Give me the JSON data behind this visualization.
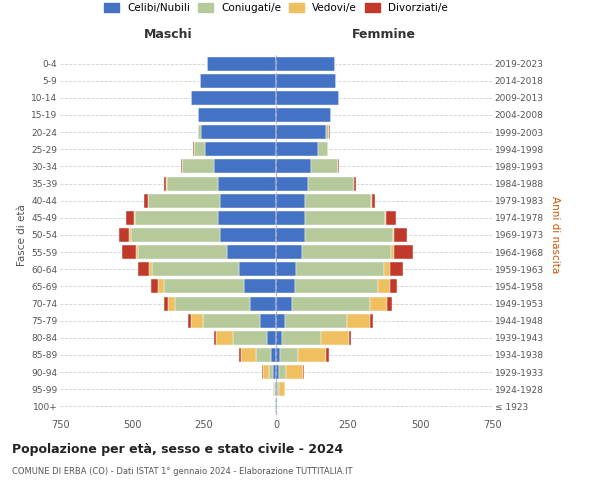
{
  "age_groups": [
    "100+",
    "95-99",
    "90-94",
    "85-89",
    "80-84",
    "75-79",
    "70-74",
    "65-69",
    "60-64",
    "55-59",
    "50-54",
    "45-49",
    "40-44",
    "35-39",
    "30-34",
    "25-29",
    "20-24",
    "15-19",
    "10-14",
    "5-9",
    "0-4"
  ],
  "birth_years": [
    "≤ 1923",
    "1924-1928",
    "1929-1933",
    "1934-1938",
    "1939-1943",
    "1944-1948",
    "1949-1953",
    "1954-1958",
    "1959-1963",
    "1964-1968",
    "1969-1973",
    "1974-1978",
    "1979-1983",
    "1984-1988",
    "1989-1993",
    "1994-1998",
    "1999-2003",
    "2004-2008",
    "2009-2013",
    "2014-2018",
    "2019-2023"
  ],
  "colors": {
    "celibi": "#4472C4",
    "coniugati": "#b5c99a",
    "vedovi": "#f0c060",
    "divorziati": "#c0392b"
  },
  "maschi": {
    "celibi": [
      2,
      5,
      10,
      18,
      30,
      55,
      90,
      110,
      130,
      170,
      195,
      200,
      195,
      200,
      215,
      245,
      260,
      270,
      295,
      265,
      240
    ],
    "coniugati": [
      0,
      3,
      15,
      50,
      120,
      200,
      260,
      280,
      300,
      310,
      310,
      290,
      250,
      180,
      110,
      40,
      10,
      2,
      0,
      0,
      0
    ],
    "vedovi": [
      0,
      2,
      20,
      55,
      60,
      40,
      25,
      18,
      10,
      5,
      4,
      2,
      1,
      1,
      0,
      0,
      0,
      0,
      0,
      0,
      0
    ],
    "divorziati": [
      0,
      0,
      2,
      5,
      5,
      10,
      15,
      25,
      40,
      50,
      35,
      30,
      12,
      8,
      5,
      2,
      2,
      0,
      0,
      0,
      0
    ]
  },
  "femmine": {
    "celibi": [
      2,
      5,
      10,
      15,
      22,
      30,
      55,
      65,
      70,
      90,
      100,
      100,
      100,
      110,
      120,
      145,
      175,
      190,
      220,
      210,
      205
    ],
    "coniugati": [
      0,
      5,
      25,
      60,
      135,
      215,
      270,
      290,
      305,
      310,
      305,
      280,
      230,
      160,
      95,
      35,
      10,
      2,
      0,
      0,
      0
    ],
    "vedovi": [
      2,
      20,
      60,
      100,
      95,
      80,
      60,
      40,
      20,
      10,
      5,
      3,
      2,
      1,
      0,
      0,
      0,
      0,
      0,
      0,
      0
    ],
    "divorziati": [
      0,
      0,
      3,
      8,
      8,
      12,
      18,
      25,
      45,
      65,
      45,
      35,
      12,
      8,
      5,
      2,
      2,
      0,
      0,
      0,
      0
    ]
  },
  "title_main": "Popolazione per età, sesso e stato civile - 2024",
  "title_sub": "COMUNE DI ERBA (CO) - Dati ISTAT 1° gennaio 2024 - Elaborazione TUTTITALIA.IT",
  "xlabel_left": "Maschi",
  "xlabel_right": "Femmine",
  "ylabel_left": "Fasce di età",
  "ylabel_right": "Anni di nascita",
  "xlim": 750,
  "bg_color": "#ffffff",
  "grid_color": "#cccccc",
  "legend_labels": [
    "Celibi/Nubili",
    "Coniugati/e",
    "Vedovi/e",
    "Divorziati/e"
  ]
}
